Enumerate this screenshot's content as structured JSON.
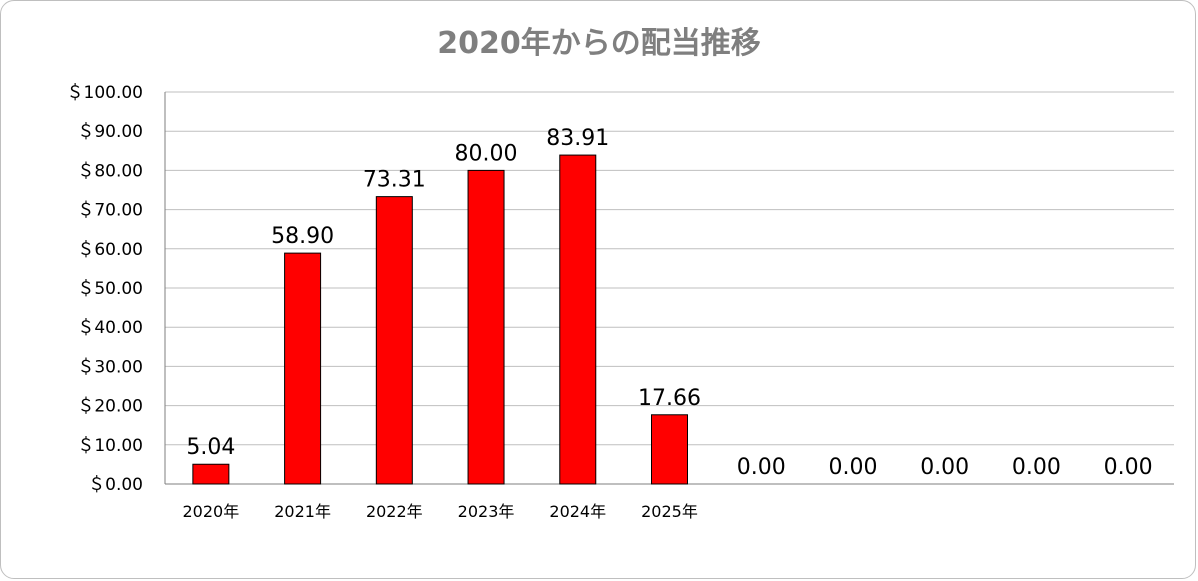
{
  "chart_data": {
    "type": "bar",
    "title": "2020年からの配当推移",
    "xlabel": "",
    "ylabel": "",
    "categories": [
      "2020年",
      "2021年",
      "2022年",
      "2023年",
      "2024年",
      "2025年",
      "",
      "",
      "",
      "",
      ""
    ],
    "series": [
      {
        "values": [
          5.04,
          58.9,
          73.31,
          80.0,
          83.91,
          17.66,
          0,
          0,
          0,
          0,
          0
        ]
      }
    ],
    "data_labels": [
      "5.04",
      "58.90",
      "73.31",
      "80.00",
      "83.91",
      "17.66",
      "0.00",
      "0.00",
      "0.00",
      "0.00",
      "0.00"
    ],
    "ylim": [
      0,
      100
    ],
    "yticks": [
      0,
      10,
      20,
      30,
      40,
      50,
      60,
      70,
      80,
      90,
      100
    ],
    "ytick_labels": [
      "＄0.00",
      "＄10.00",
      "＄20.00",
      "＄30.00",
      "＄40.00",
      "＄50.00",
      "＄60.00",
      "＄70.00",
      "＄80.00",
      "＄90.00",
      "＄100.00"
    ],
    "grid": true,
    "legend": "none",
    "bar_color": "#ff0000",
    "bar_edge_color": "#000000"
  }
}
